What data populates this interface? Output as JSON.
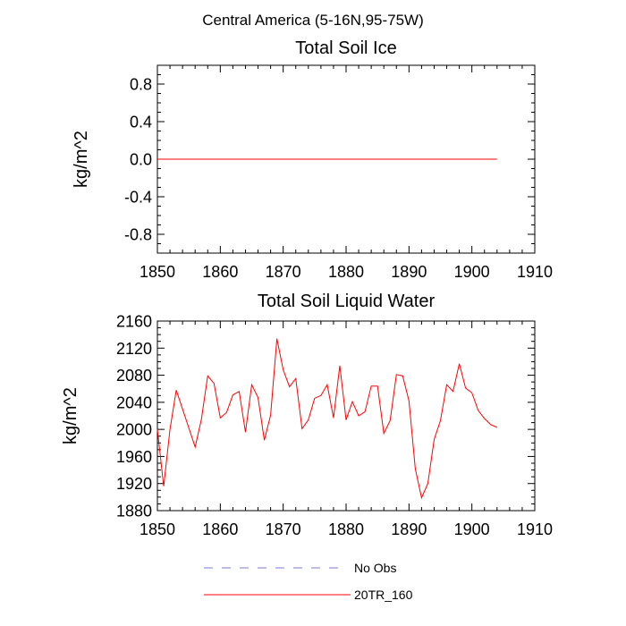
{
  "figure": {
    "title": "Central America (5-16N,95-75W)"
  },
  "chart_data": [
    {
      "type": "line",
      "title": "Total Soil Ice",
      "xlabel": "",
      "ylabel": "kg/m^2",
      "xlim": [
        1850,
        1910
      ],
      "ylim": [
        -1.0,
        1.0
      ],
      "x_ticks": [
        1850,
        1860,
        1870,
        1880,
        1890,
        1900,
        1910
      ],
      "x_tick_labels": [
        "1850",
        "1860",
        "1870",
        "1880",
        "1890",
        "1900",
        "1910"
      ],
      "y_ticks": [
        -0.8,
        -0.4,
        0.0,
        0.4,
        0.8
      ],
      "y_tick_labels": [
        "-0.8",
        "-0.4",
        "0.0",
        "0.4",
        "0.8"
      ],
      "series": [
        {
          "name": "20TR_160",
          "color": "#ff0000",
          "x": [
            1850,
            1904
          ],
          "values": [
            0.0,
            0.0
          ]
        }
      ]
    },
    {
      "type": "line",
      "title": "Total Soil Liquid Water",
      "xlabel": "",
      "ylabel": "kg/m^2",
      "xlim": [
        1850,
        1910
      ],
      "ylim": [
        1880,
        2160
      ],
      "x_ticks": [
        1850,
        1860,
        1870,
        1880,
        1890,
        1900,
        1910
      ],
      "x_tick_labels": [
        "1850",
        "1860",
        "1870",
        "1880",
        "1890",
        "1900",
        "1910"
      ],
      "y_ticks": [
        1880,
        1920,
        1960,
        2000,
        2040,
        2080,
        2120,
        2160
      ],
      "y_tick_labels": [
        "1880",
        "1920",
        "1960",
        "2000",
        "2040",
        "2080",
        "2120",
        "2160"
      ],
      "series": [
        {
          "name": "20TR_160",
          "color": "#ff0000",
          "x": [
            1850,
            1851,
            1852,
            1853,
            1854,
            1855,
            1856,
            1857,
            1858,
            1859,
            1860,
            1861,
            1862,
            1863,
            1864,
            1865,
            1866,
            1867,
            1868,
            1869,
            1870,
            1871,
            1872,
            1873,
            1874,
            1875,
            1876,
            1877,
            1878,
            1879,
            1880,
            1881,
            1882,
            1883,
            1884,
            1885,
            1886,
            1887,
            1888,
            1889,
            1890,
            1891,
            1892,
            1893,
            1894,
            1895,
            1896,
            1897,
            1898,
            1899,
            1900,
            1901,
            1902,
            1903,
            1904
          ],
          "values": [
            2000,
            1916,
            2000,
            2058,
            2030,
            2002,
            1974,
            2015,
            2079,
            2068,
            2017,
            2025,
            2051,
            2056,
            1996,
            2066,
            2047,
            1984,
            2021,
            2134,
            2088,
            2063,
            2075,
            2001,
            2014,
            2046,
            2050,
            2066,
            2017,
            2094,
            2014,
            2041,
            2020,
            2026,
            2064,
            2064,
            1994,
            2013,
            2081,
            2079,
            2042,
            1942,
            1899,
            1920,
            1985,
            2013,
            2066,
            2056,
            2097,
            2061,
            2054,
            2028,
            2016,
            2007,
            2003
          ]
        }
      ]
    }
  ],
  "legend": {
    "items": [
      {
        "label": "No Obs",
        "color": "#7a7ad6",
        "style": "dashed"
      },
      {
        "label": "20TR_160",
        "color": "#ff0000",
        "style": "solid"
      }
    ]
  }
}
